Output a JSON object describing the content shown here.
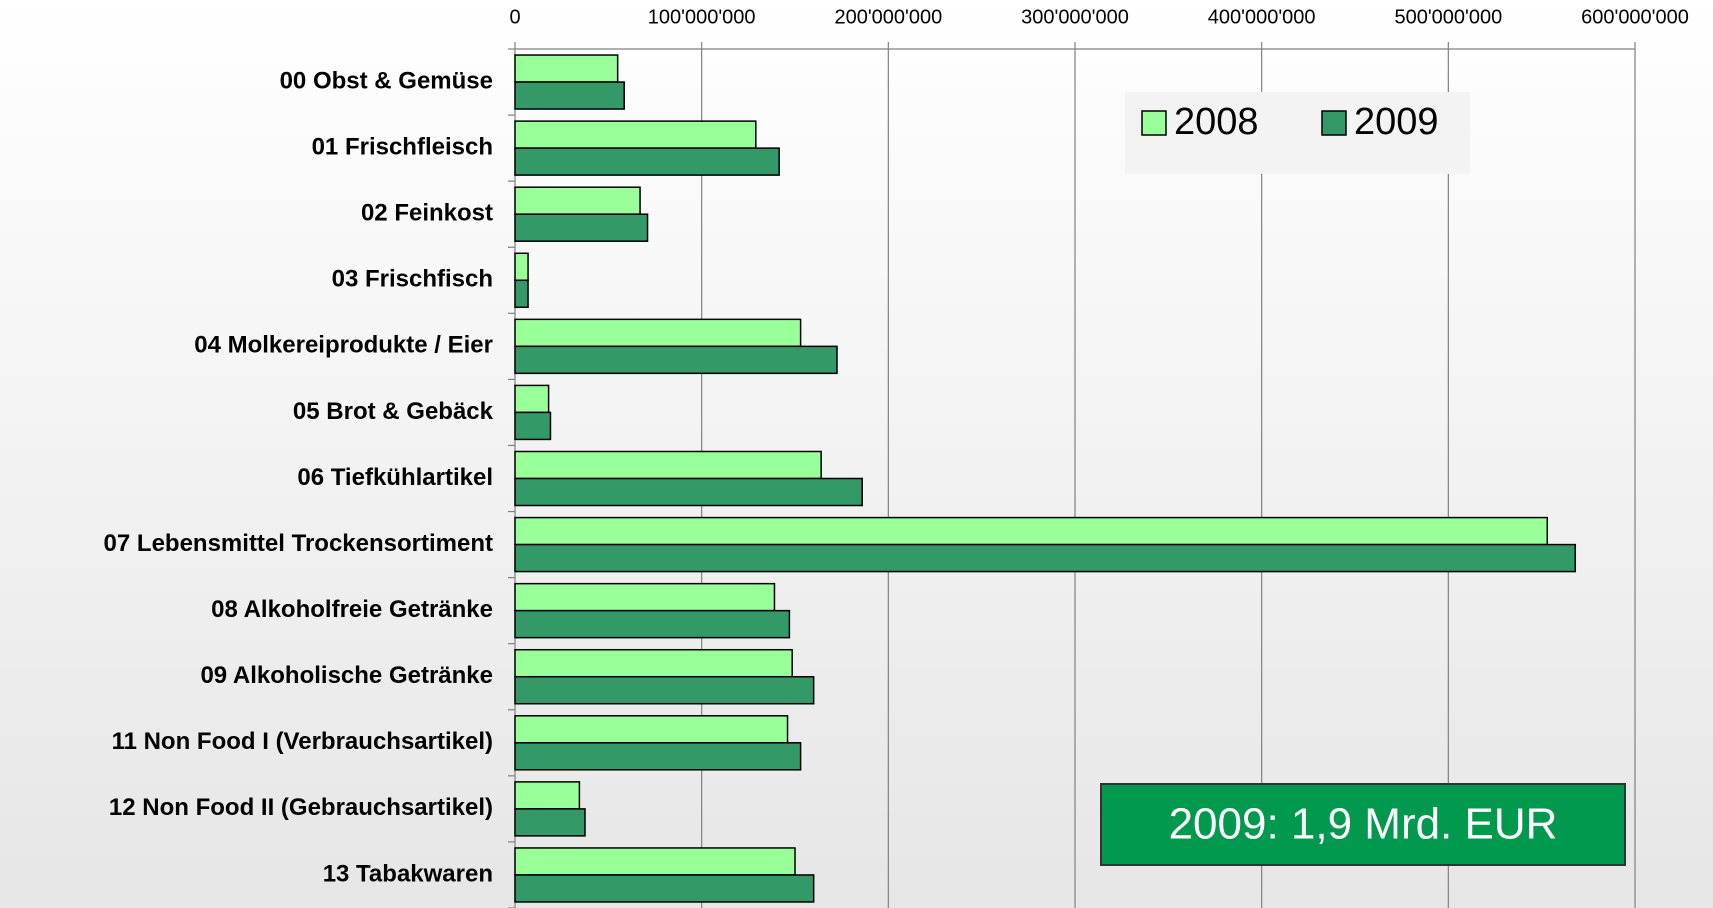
{
  "chart_data": {
    "type": "bar",
    "orientation": "horizontal",
    "categories": [
      "00 Obst & Gemüse",
      "01 Frischfleisch",
      "02 Feinkost",
      "03 Frischfisch",
      "04 Molkereiprodukte / Eier",
      "05 Brot & Gebäck",
      "06 Tiefkühlartikel",
      "07 Lebensmittel Trockensortiment",
      "08 Alkoholfreie Getränke",
      "09 Alkoholische Getränke",
      "11 Non Food I (Verbrauchsartikel)",
      "12 Non Food II (Gebrauchsartikel)",
      "13 Tabakwaren"
    ],
    "series": [
      {
        "name": "2008",
        "color": "#99ff99",
        "values": [
          55000000,
          129000000,
          67000000,
          7000000,
          153000000,
          18000000,
          164000000,
          553000000,
          139000000,
          148500000,
          146000000,
          34500000,
          150000000
        ]
      },
      {
        "name": "2009",
        "color": "#339966",
        "values": [
          58500000,
          141500000,
          71000000,
          7000000,
          172500000,
          19000000,
          186000000,
          568000000,
          147000000,
          160000000,
          153000000,
          37500000,
          160000000
        ]
      }
    ],
    "xlim": [
      0,
      600000000
    ],
    "xticks": [
      0,
      {
        "value": 100000000,
        "label": "100'000'000"
      },
      {
        "value": 200000000,
        "label": "200'000'000"
      },
      {
        "value": 300000000,
        "label": "300'000'000"
      },
      {
        "value": 400000000,
        "label": "400'000'000"
      },
      {
        "value": 500000000,
        "label": "500'000'000"
      },
      {
        "value": 600000000,
        "label": "600'000'000"
      }
    ],
    "grid": true,
    "annotation": "2009: 1,9 Mrd. EUR"
  }
}
